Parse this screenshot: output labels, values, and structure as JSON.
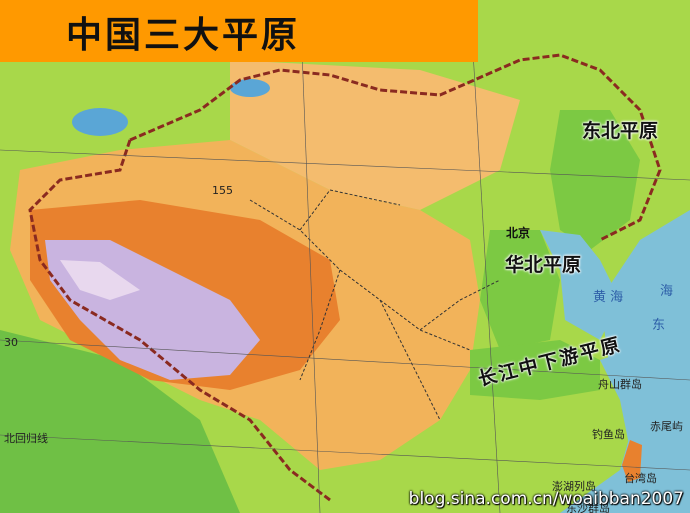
{
  "title": "中国三大平原",
  "plains": {
    "northeast": "东北平原",
    "north_china": "华北平原",
    "yangtze": "长江中下游平原"
  },
  "places": {
    "beijing": "北京",
    "zhoushan": "舟山群岛",
    "diaoyu": "钓鱼岛",
    "chiwei": "赤尾屿",
    "penghu": "澎湖列岛",
    "taiwan": "台湾岛",
    "dongsha": "东沙群岛"
  },
  "seas": {
    "yellow_sea": "黄 海",
    "east_sea": "东",
    "bohai": "海"
  },
  "lines": {
    "tropic": "北回归线",
    "lat30": "30",
    "elev155": "155"
  },
  "watermark": "blog.sina.com.cn/woaibban2007",
  "colors": {
    "title_bar": "#ff9900",
    "plain": "#7cc943",
    "lowland": "#a8d84a",
    "hills": "#f2b35a",
    "mountains": "#e8812e",
    "high_plateau": "#d06a2a",
    "glacier": "#c9b4e0",
    "sea": "#7fc0d8",
    "border": "#8a2a20"
  }
}
